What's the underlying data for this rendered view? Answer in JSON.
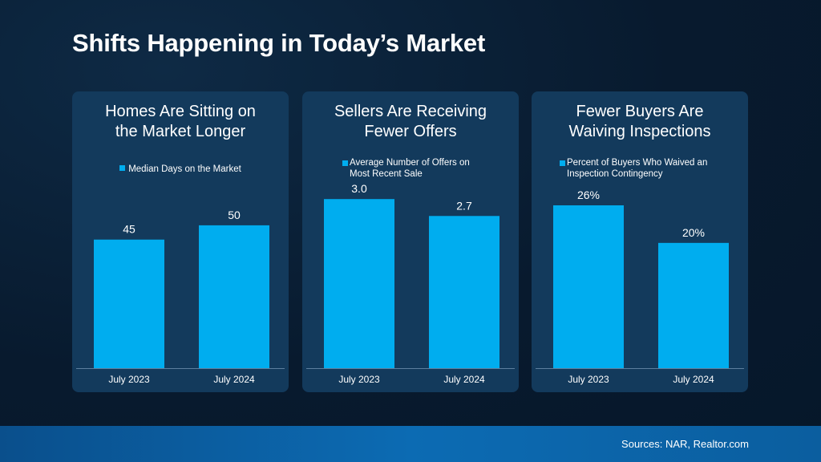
{
  "slide": {
    "title": "Shifts Happening in Today’s Market",
    "sources": "Sources: NAR, Realtor.com"
  },
  "colors": {
    "background": "#081a2e",
    "panel": "#133a5c",
    "bar": "#00adef",
    "footer": "#0c6bb3"
  },
  "chart_data": [
    {
      "type": "bar",
      "title": "Homes Are Sitting on the Market Longer",
      "title_lines": [
        "Homes Are Sitting on",
        "the Market Longer"
      ],
      "legend_lines": [
        "Median Days on the Market"
      ],
      "categories": [
        "July 2023",
        "July 2024"
      ],
      "series": [
        {
          "name": "Median Days on the Market",
          "values": [
            45,
            50
          ]
        }
      ],
      "value_labels": [
        "45",
        "50"
      ],
      "ylim": [
        0,
        73
      ],
      "grid": false
    },
    {
      "type": "bar",
      "title": "Sellers Are Receiving Fewer Offers",
      "title_lines": [
        "Sellers Are Receiving",
        "Fewer Offers"
      ],
      "legend_lines": [
        "Average Number of Offers on",
        "Most Recent Sale"
      ],
      "categories": [
        "July 2023",
        "July 2024"
      ],
      "series": [
        {
          "name": "Average Number of Offers on Most Recent Sale",
          "values": [
            3.0,
            2.7
          ]
        }
      ],
      "value_labels": [
        "3.0",
        "2.7"
      ],
      "ylim": [
        0,
        3.7
      ],
      "grid": false
    },
    {
      "type": "bar",
      "title": "Fewer Buyers Are Waiving Inspections",
      "title_lines": [
        "Fewer Buyers Are",
        "Waiving Inspections"
      ],
      "legend_lines": [
        "Percent of Buyers Who Waived an",
        "Inspection Contingency"
      ],
      "categories": [
        "July 2023",
        "July 2024"
      ],
      "series": [
        {
          "name": "Percent of Buyers Who Waived an Inspection Contingency",
          "values": [
            26,
            20
          ]
        }
      ],
      "value_labels": [
        "26%",
        "20%"
      ],
      "ylim": [
        0,
        33.3
      ],
      "grid": false
    }
  ]
}
